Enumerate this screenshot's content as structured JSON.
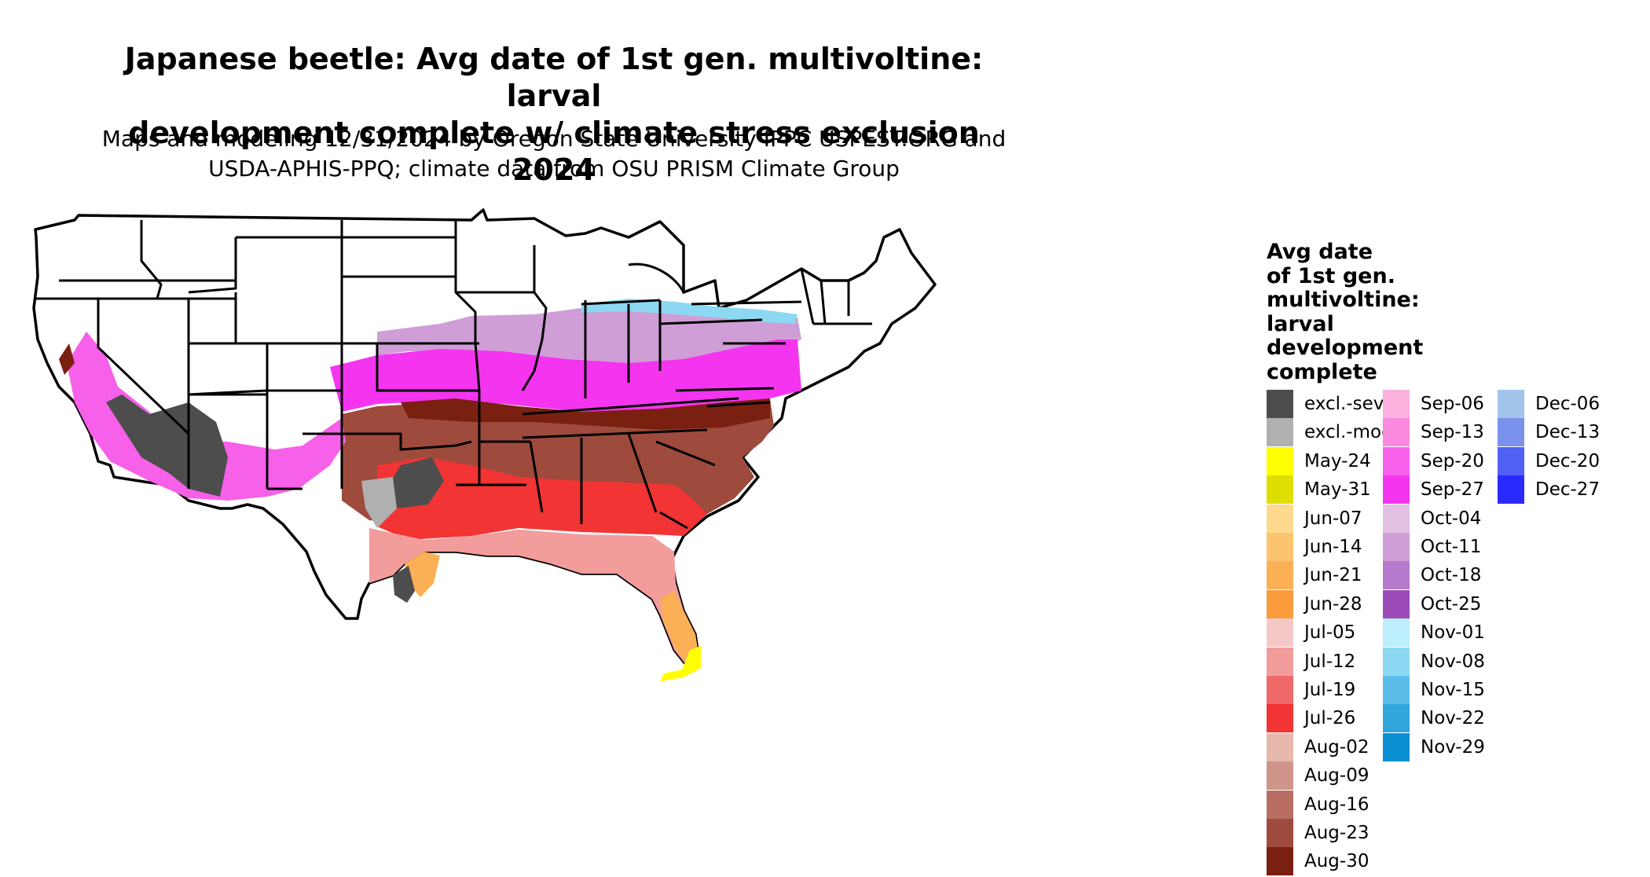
{
  "title": {
    "line1": "Japanese beetle: Avg date of 1st gen. multivoltine: larval",
    "line2": "development complete w/ climate stress exclusion 2024"
  },
  "subtitle": {
    "line1": "Maps and modeling 12/31/2024 by Oregon State University IPPC USPEST.ORG and",
    "line2": "USDA-APHIS-PPQ; climate data from OSU PRISM Climate Group"
  },
  "legend": {
    "title_lines": [
      "Avg date",
      "of 1st gen.",
      "multivoltine:",
      "larval",
      "development",
      "complete"
    ],
    "items": [
      {
        "label": "excl.-sev.",
        "color": "#4d4d4d"
      },
      {
        "label": "excl.-mod.",
        "color": "#b0b0b0"
      },
      {
        "label": "May-24",
        "color": "#ffff00"
      },
      {
        "label": "May-31",
        "color": "#dede00"
      },
      {
        "label": "Jun-07",
        "color": "#fcd98c"
      },
      {
        "label": "Jun-14",
        "color": "#fcc46e"
      },
      {
        "label": "Jun-21",
        "color": "#fbb056"
      },
      {
        "label": "Jun-28",
        "color": "#fa9b3c"
      },
      {
        "label": "Jul-05",
        "color": "#f5c8c8"
      },
      {
        "label": "Jul-12",
        "color": "#f29c9c"
      },
      {
        "label": "Jul-19",
        "color": "#ef6969"
      },
      {
        "label": "Jul-26",
        "color": "#f23434"
      },
      {
        "label": "Aug-02",
        "color": "#e7b8ac"
      },
      {
        "label": "Aug-09",
        "color": "#d0958a"
      },
      {
        "label": "Aug-16",
        "color": "#b86f62"
      },
      {
        "label": "Aug-23",
        "color": "#9e4a3c"
      },
      {
        "label": "Aug-30",
        "color": "#7a2010"
      },
      {
        "label": "Sep-06",
        "color": "#fbb0de"
      },
      {
        "label": "Sep-13",
        "color": "#f98ae0"
      },
      {
        "label": "Sep-20",
        "color": "#f760e8"
      },
      {
        "label": "Sep-27",
        "color": "#f534f0"
      },
      {
        "label": "Oct-04",
        "color": "#e2c0e4"
      },
      {
        "label": "Oct-11",
        "color": "#cf9ed6"
      },
      {
        "label": "Oct-18",
        "color": "#b57acb"
      },
      {
        "label": "Oct-25",
        "color": "#9b4cb9"
      },
      {
        "label": "Nov-01",
        "color": "#bdeefc"
      },
      {
        "label": "Nov-08",
        "color": "#8cd8f2"
      },
      {
        "label": "Nov-15",
        "color": "#5bbde8"
      },
      {
        "label": "Nov-22",
        "color": "#31a6dd"
      },
      {
        "label": "Nov-29",
        "color": "#0a8fd2"
      },
      {
        "label": "Dec-06",
        "color": "#a2c4ea"
      },
      {
        "label": "Dec-13",
        "color": "#7a92ec"
      },
      {
        "label": "Dec-20",
        "color": "#5060f4"
      },
      {
        "label": "Dec-27",
        "color": "#2a2afc"
      }
    ]
  }
}
